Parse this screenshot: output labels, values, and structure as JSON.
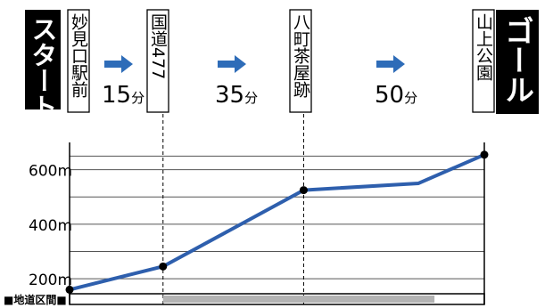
{
  "chart_data": {
    "type": "line",
    "start_label": "スタート",
    "goal_label": "ゴール",
    "stops": [
      {
        "name": "妙見口駅前",
        "dist": 0,
        "elevation": 160
      },
      {
        "name": "国道477",
        "dist": 105,
        "elevation": 245
      },
      {
        "name": "八町茶屋跡",
        "dist": 263,
        "elevation": 525
      },
      {
        "name": "",
        "dist": 392,
        "elevation": 550
      },
      {
        "name": "山上公園",
        "dist": 466,
        "elevation": 655
      }
    ],
    "durations": [
      {
        "number": "15",
        "unit": "分"
      },
      {
        "number": "35",
        "unit": "分"
      },
      {
        "number": "50",
        "unit": "分"
      }
    ],
    "y_ticks": [
      {
        "value": 600,
        "label": "600m"
      },
      {
        "value": 400,
        "label": "400m"
      },
      {
        "value": 200,
        "label": "200m"
      }
    ],
    "ylim": [
      145,
      700
    ],
    "legend_label": "■地道区間■",
    "road_segment": {
      "from": 105,
      "to": 410
    },
    "colors": {
      "line": "#2e5fad",
      "grid": "#555555",
      "road": "#b3b3b3",
      "arrow": "#2e6cb8",
      "black": "#000000"
    }
  }
}
